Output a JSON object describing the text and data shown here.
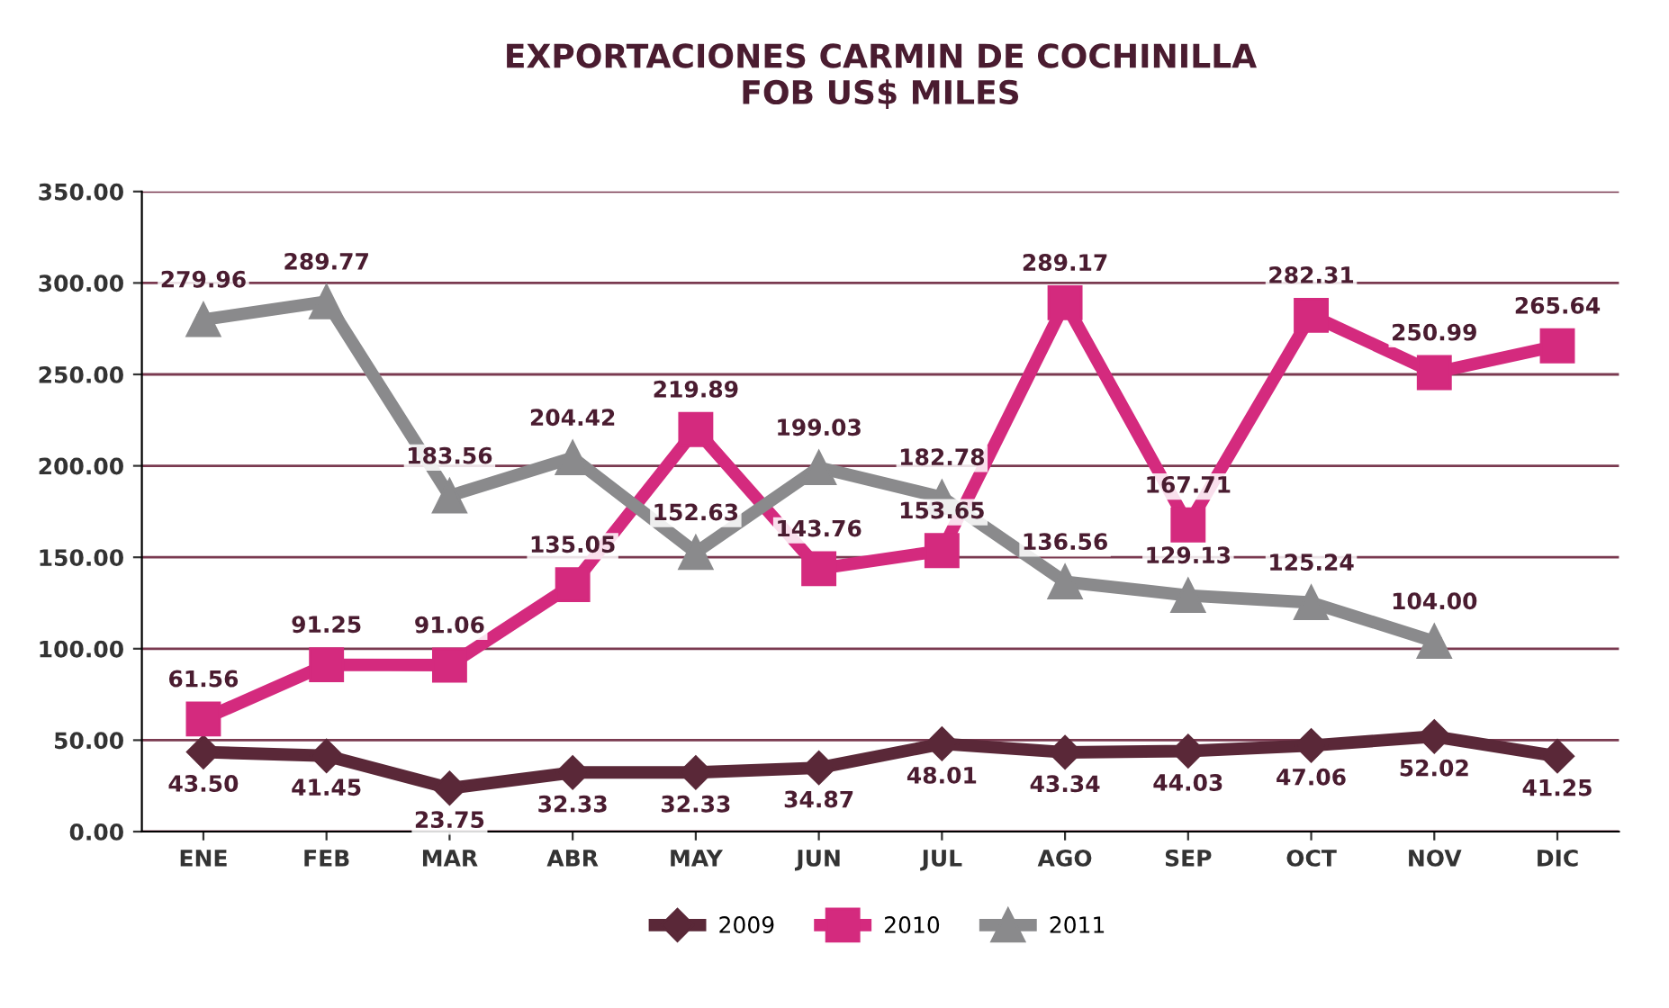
{
  "chart_data": {
    "type": "line",
    "title": "EXPORTACIONES CARMIN DE COCHINILLA\nFOB US$ MILES",
    "categories": [
      "ENE",
      "FEB",
      "MAR",
      "ABR",
      "MAY",
      "JUN",
      "JUL",
      "AGO",
      "SEP",
      "OCT",
      "NOV",
      "DIC"
    ],
    "series": [
      {
        "name": "2009",
        "color": "#5a2838",
        "marker": "diamond",
        "values": [
          43.5,
          41.45,
          23.75,
          32.33,
          32.33,
          34.87,
          48.01,
          43.34,
          44.03,
          47.06,
          52.02,
          41.25
        ],
        "value_labels": [
          "43.50",
          "41.45",
          "23.75",
          "32.33",
          "32.33",
          "34.87",
          "48.01",
          "43.34",
          "44.03",
          "47.06",
          "52.02",
          "41.25"
        ]
      },
      {
        "name": "2010",
        "color": "#d42a7e",
        "marker": "square",
        "values": [
          61.56,
          91.25,
          91.06,
          135.05,
          219.89,
          143.76,
          153.65,
          289.17,
          167.71,
          282.31,
          250.99,
          265.64
        ],
        "value_labels": [
          "61.56",
          "91.25",
          "91.06",
          "135.05",
          "219.89",
          "143.76",
          "153.65",
          "289.17",
          "167.71",
          "282.31",
          "250.99",
          "265.64"
        ]
      },
      {
        "name": "2011",
        "color": "#8a8a8c",
        "marker": "triangle",
        "values": [
          279.96,
          289.77,
          183.56,
          204.42,
          152.63,
          199.03,
          182.78,
          136.56,
          129.13,
          125.24,
          104.0,
          null
        ],
        "value_labels": [
          "279.96",
          "289.77",
          "183.56",
          "204.42",
          "152.63",
          "199.03",
          "182.78",
          "136.56",
          "129.13",
          "125.24",
          "104.00",
          null
        ]
      }
    ],
    "ylim": [
      0,
      350
    ],
    "yticks": [
      {
        "value": 0,
        "label": "0.00"
      },
      {
        "value": 50,
        "label": "50.00"
      },
      {
        "value": 100,
        "label": "100.00"
      },
      {
        "value": 150,
        "label": "150.00"
      },
      {
        "value": 200,
        "label": "200.00"
      },
      {
        "value": 250,
        "label": "250.00"
      },
      {
        "value": 300,
        "label": "300.00"
      },
      {
        "value": 350,
        "label": "350.00"
      }
    ],
    "grid": "y",
    "legend": "bottom",
    "line_style": "solid"
  }
}
